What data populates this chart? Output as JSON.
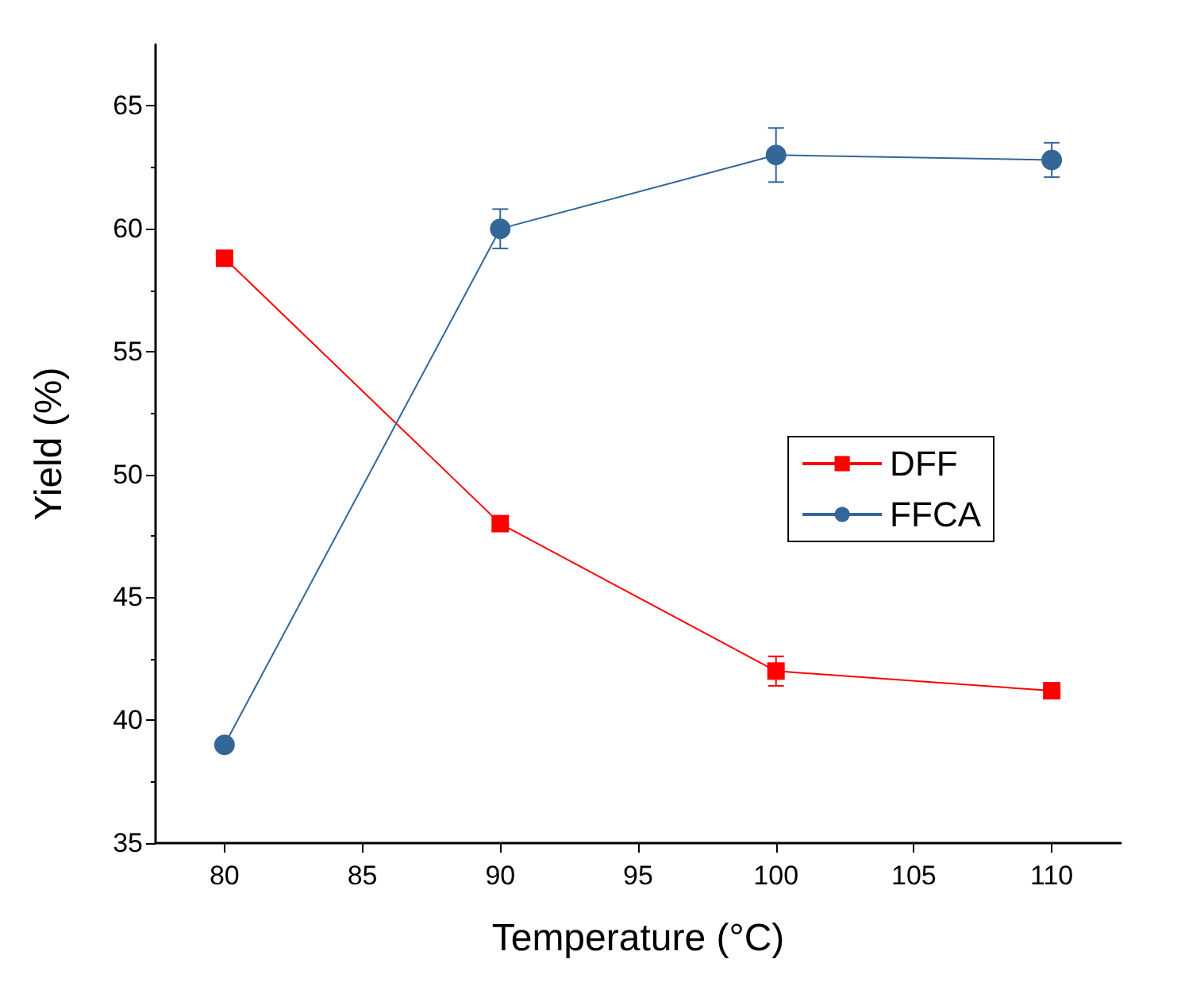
{
  "chart_data": {
    "type": "line",
    "xlabel": "Temperature (°C)",
    "ylabel": "Yield (%)",
    "x": [
      80,
      90,
      100,
      110
    ],
    "series": [
      {
        "name": "DFF",
        "color": "#ff0000",
        "marker": "square",
        "values": [
          58.8,
          48.0,
          42.0,
          41.2
        ],
        "errors": [
          0.3,
          null,
          0.6,
          null
        ]
      },
      {
        "name": "FFCA",
        "color": "#336699",
        "marker": "circle",
        "values": [
          39.0,
          60.0,
          63.0,
          62.8
        ],
        "errors": [
          null,
          0.8,
          1.1,
          0.7
        ]
      }
    ],
    "xlim": [
      77.5,
      112.5
    ],
    "xticks": [
      80,
      85,
      90,
      95,
      100,
      105,
      110
    ],
    "ylim": [
      35,
      67.5
    ],
    "yticks": [
      35,
      40,
      45,
      50,
      55,
      60,
      65
    ],
    "grid": false,
    "legend": "right",
    "line_style": "solid"
  }
}
